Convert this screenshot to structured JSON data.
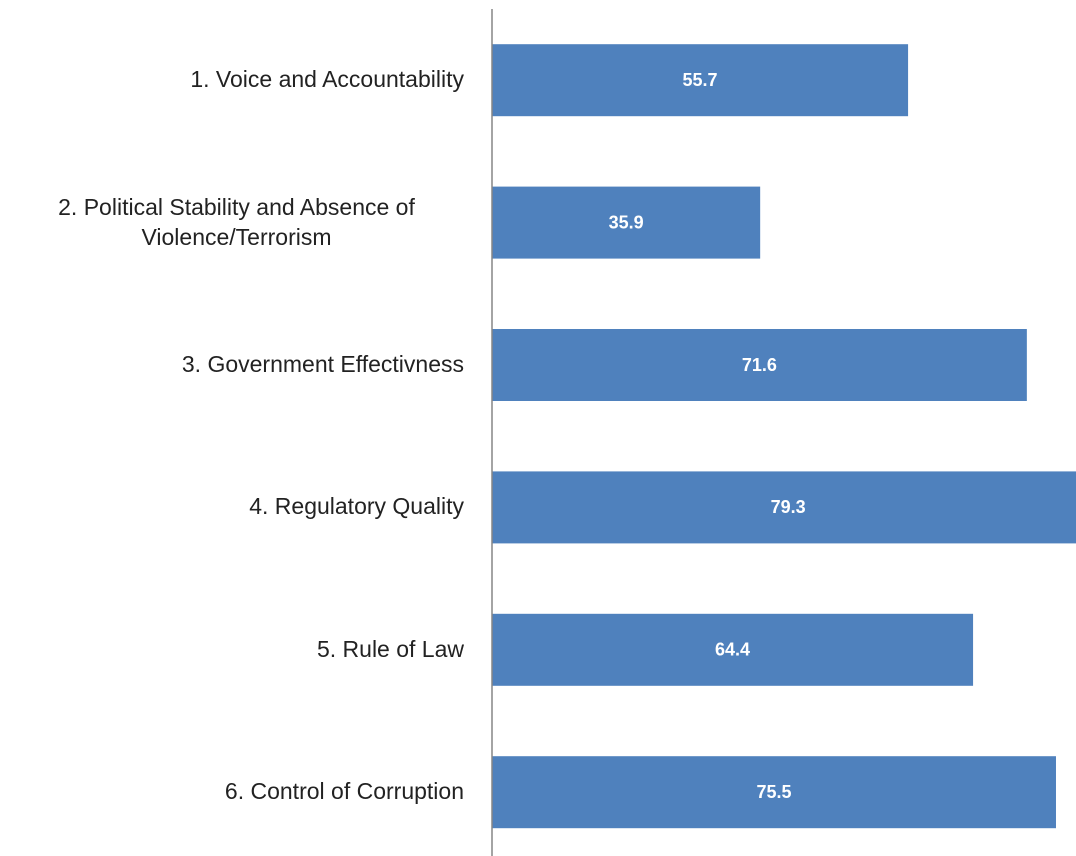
{
  "chart_data": {
    "type": "barh",
    "categories": [
      "1. Voice and Accountability",
      "2. Political Stability and Absence of Violence/Terrorism",
      "3. Government Effectivness",
      "4. Regulatory Quality",
      "5. Rule of Law",
      "6. Control of Corruption"
    ],
    "values": [
      55.7,
      35.9,
      71.6,
      79.3,
      64.4,
      75.5
    ],
    "color": "#4f81bd",
    "xlim": [
      0,
      80
    ]
  }
}
